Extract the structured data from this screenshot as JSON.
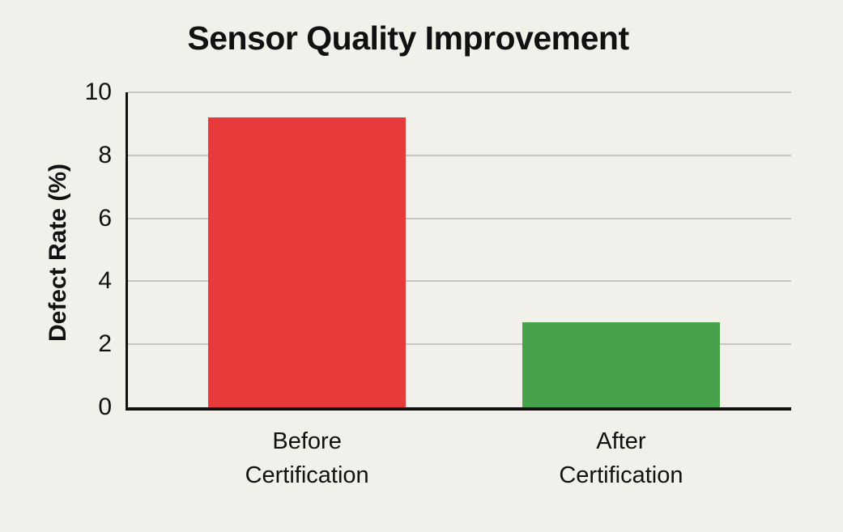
{
  "chart_data": {
    "type": "bar",
    "title": "Sensor Quality Improvement",
    "ylabel": "Defect Rate (%)",
    "xlabel": "",
    "categories": [
      "Before\nCertification",
      "After\nCertification"
    ],
    "values": [
      9.2,
      2.7
    ],
    "bar_colors": [
      "#e8393b",
      "#47a34b"
    ],
    "ylim": [
      0,
      10
    ],
    "yticks": [
      0,
      2,
      4,
      6,
      8,
      10
    ],
    "grid": "horizontal",
    "gridline_color": "#c7c5c0",
    "background_color": "#f2f0ea",
    "axis_color": "#111111",
    "legend": null
  }
}
